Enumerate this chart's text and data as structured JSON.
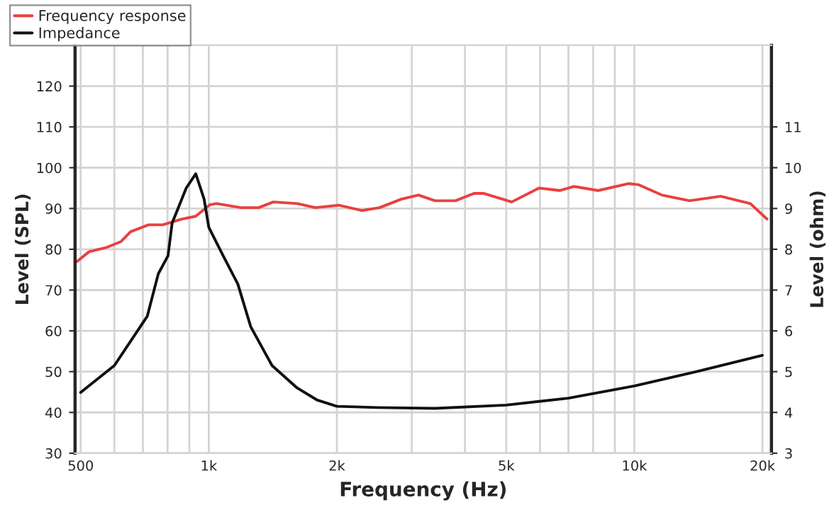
{
  "chart_data": {
    "type": "line",
    "xlabel": "Frequency (Hz)",
    "ylabel": "Level (SPL)",
    "y2label": "Level (ohm)",
    "log": "x",
    "xlim": [
      485,
      21000
    ],
    "xticks": [
      500,
      {
        "value": 600,
        "label": null
      },
      {
        "value": 700,
        "label": null
      },
      {
        "value": 800,
        "label": null
      },
      {
        "value": 900,
        "label": null
      },
      {
        "value": 1000,
        "label": "1k"
      },
      {
        "value": 2000,
        "label": "2k"
      },
      {
        "value": 3000,
        "label": null
      },
      {
        "value": 4000,
        "label": null
      },
      {
        "value": 5000,
        "label": "5k"
      },
      {
        "value": 6000,
        "label": null
      },
      {
        "value": 7000,
        "label": null
      },
      {
        "value": 8000,
        "label": null
      },
      {
        "value": 9000,
        "label": null
      },
      {
        "value": 10000,
        "label": "10k"
      },
      {
        "value": 20000,
        "label": "20k"
      }
    ],
    "ylim": [
      30,
      130
    ],
    "yticks": [
      30,
      40,
      50,
      60,
      70,
      80,
      90,
      100,
      110,
      120
    ],
    "y2lim": [
      3,
      13
    ],
    "y2ticks": [
      3,
      4,
      5,
      6,
      7,
      8,
      9,
      10,
      11
    ],
    "grid": true,
    "legend": "top left",
    "line_style": "solid",
    "marker": "none",
    "series": [
      {
        "name": "Frequency response",
        "color": "#e8413f",
        "x": [
          490,
          523,
          577,
          622,
          655,
          722,
          779,
          864,
          932,
          1005,
          1042,
          1190,
          1310,
          1418,
          1613,
          1780,
          2020,
          2290,
          2520,
          2835,
          3110,
          3400,
          3800,
          4200,
          4430,
          5150,
          5970,
          6690,
          7220,
          8220,
          9710,
          10250,
          11600,
          13480,
          15950,
          18730,
          20500
        ],
        "values": [
          77,
          79.4,
          80.5,
          81.9,
          84.3,
          86,
          86,
          87.4,
          88.1,
          90.9,
          91.2,
          90.2,
          90.2,
          91.6,
          91.2,
          90.2,
          90.8,
          89.5,
          90.2,
          92.3,
          93.3,
          91.9,
          91.9,
          93.7,
          93.7,
          91.6,
          95,
          94.4,
          95.4,
          94.4,
          96.1,
          95.8,
          93.3,
          91.9,
          93,
          91.2,
          87.4
        ]
      },
      {
        "name": "Impedance",
        "color": "#111111",
        "axis": "y2",
        "x": [
          500,
          600,
          717,
          761,
          802,
          820,
          885,
          932,
          975,
          1000,
          1081,
          1170,
          1255,
          1408,
          1613,
          1800,
          2000,
          2500,
          3400,
          5000,
          7000,
          10000,
          14000,
          20000
        ],
        "values": [
          4.49,
          5.15,
          6.36,
          7.4,
          7.84,
          8.64,
          9.5,
          9.85,
          9.23,
          8.54,
          7.84,
          7.15,
          6.1,
          5.15,
          4.6,
          4.3,
          4.15,
          4.12,
          4.1,
          4.18,
          4.35,
          4.65,
          5.0,
          5.4
        ]
      }
    ]
  }
}
